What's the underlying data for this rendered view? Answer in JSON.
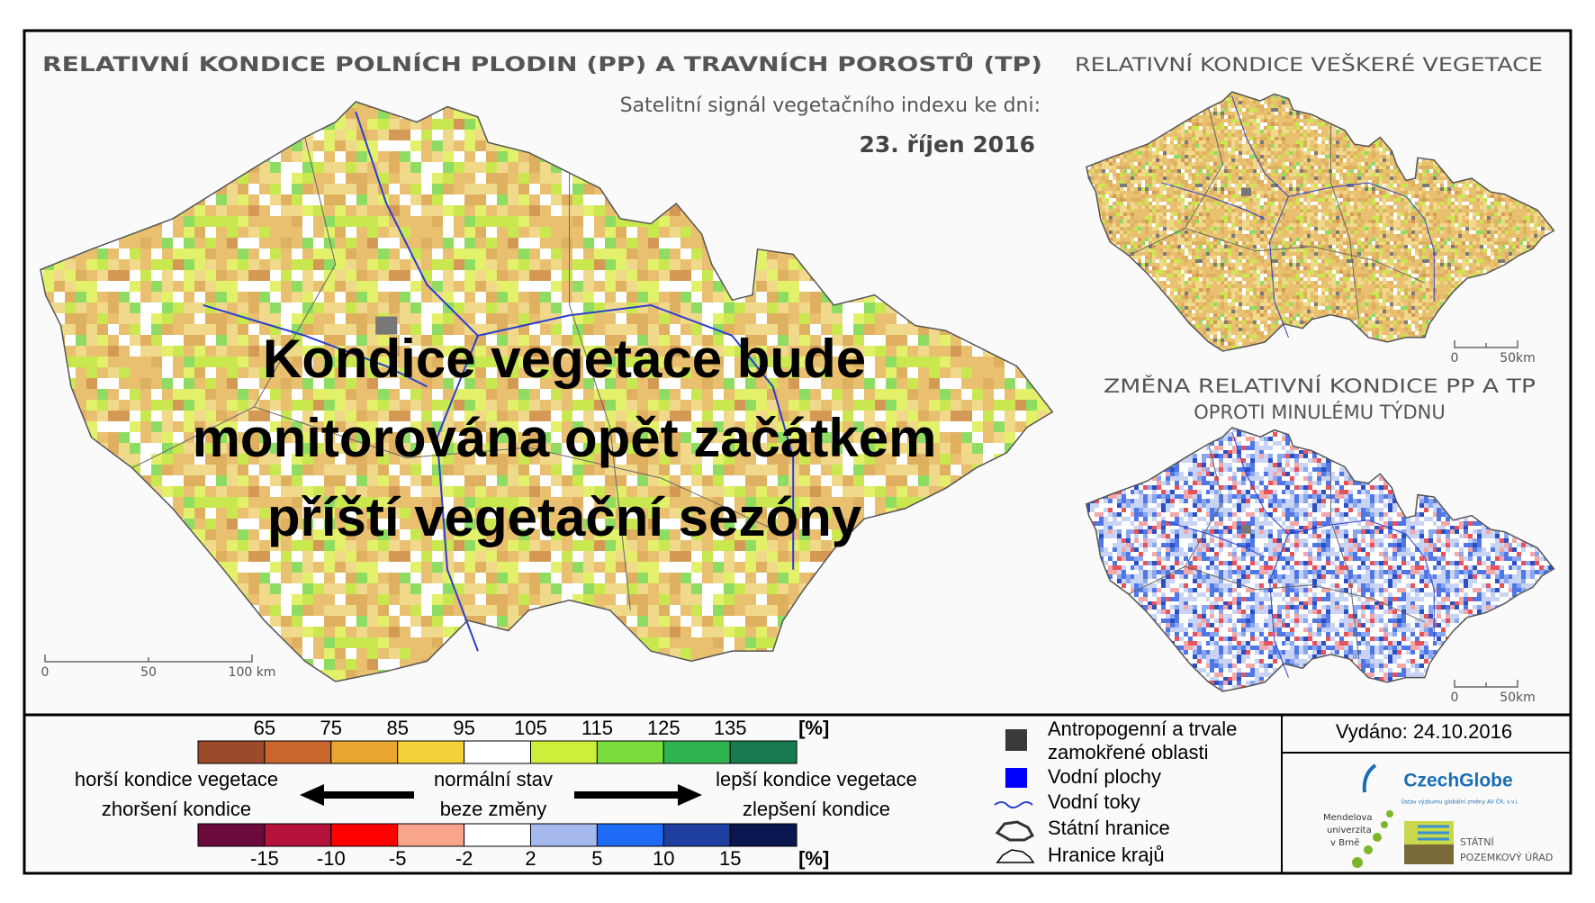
{
  "main_map": {
    "title": "RELATIVNÍ KONDICE POLNÍCH PLODIN (PP) A TRAVNÍCH POROSTŮ (TP)",
    "subtitle": "Satelitní signál vegetačního indexu ke dni:",
    "date": "23. říjen 2016",
    "overlay": [
      "Kondice vegetace bude",
      "monitorována opět začátkem",
      "příští vegetační sezóny"
    ],
    "scale": [
      "0",
      "50",
      "100 km"
    ]
  },
  "side_maps": [
    {
      "title": [
        "RELATIVNÍ KONDICE VEŠKERÉ VEGETACE"
      ],
      "scale": [
        "0",
        "50km"
      ]
    },
    {
      "title": [
        "ZMĚNA RELATIVNÍ KONDICE PP A TP",
        "OPROTI MINULÉMU TÝDNU"
      ],
      "scale": [
        "0",
        "50km"
      ]
    }
  ],
  "legend": {
    "condition": {
      "ticks": [
        "65",
        "75",
        "85",
        "95",
        "105",
        "115",
        "125",
        "135"
      ],
      "unit": "[%]",
      "colors": [
        "#9c4a2c",
        "#c8662e",
        "#e8a531",
        "#f5d13b",
        "#ffffff",
        "#ccf03a",
        "#7bdc3e",
        "#2fb452",
        "#177a4f"
      ]
    },
    "change": {
      "ticks": [
        "-15",
        "-10",
        "-5",
        "-2",
        "2",
        "5",
        "10",
        "15"
      ],
      "unit": "[%]",
      "colors": [
        "#6b0a3b",
        "#b5123b",
        "#ff0000",
        "#f9a58d",
        "#ffffff",
        "#a6b9ef",
        "#1e6bf5",
        "#1e3fa0",
        "#0a1650"
      ]
    },
    "left": [
      "horší kondice vegetace",
      "zhoršení kondice"
    ],
    "middle": [
      "normální stav",
      "beze změny"
    ],
    "right": [
      "lepší kondice vegetace",
      "zlepšení kondice"
    ]
  },
  "symbols": {
    "anthropogenic": [
      "Antropogenní a trvale",
      "zamokřené oblasti"
    ],
    "water_areas": "Vodní plochy",
    "rivers": "Vodní toky",
    "state_border": "Státní hranice",
    "regions": "Hranice krajů"
  },
  "issued": "Vydáno: 24.10.2016",
  "logos": {
    "czechglobe": "CzechGlobe",
    "czechglobe_sub": "Ústav výzkumu globální změny AV ČR, v.v.i.",
    "mendel": [
      "Mendelova",
      "univerzita",
      "v Brně"
    ],
    "spu": [
      "STÁTNÍ",
      "POZEMKOVÝ ÚŘAD"
    ]
  }
}
